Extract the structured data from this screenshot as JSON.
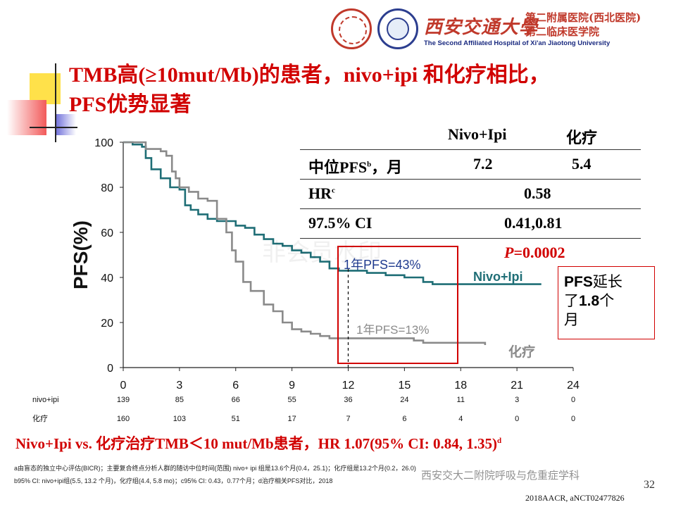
{
  "header": {
    "university": "西安交通大學",
    "dept_line1": "第二附属医院(西北医院)",
    "dept_line2": "第二临床医学院",
    "english_name": "The Second Affiliated Hospital of Xi'an Jiaotong University"
  },
  "title": {
    "line1": "TMB高(≥10mut/Mb)的患者，nivo+ipi 和化疗相比，",
    "line2": "PFS优势显著"
  },
  "stats_table": {
    "col1": "Nivo+Ipi",
    "col2": "化疗",
    "rows": [
      {
        "label": "中位PFS",
        "sup": "b",
        "suffix": "，月",
        "v1": "7.2",
        "v2": "5.4"
      },
      {
        "label": "HR",
        "sup": "c",
        "merged": "0.58"
      },
      {
        "label": "97.5% CI",
        "merged": "0.41,0.81"
      }
    ],
    "p_label": "P",
    "p_value": "=0.0002"
  },
  "chart_data": {
    "type": "line",
    "ylabel": "PFS(%)",
    "xlim": [
      0,
      24
    ],
    "ylim": [
      0,
      100
    ],
    "xticks": [
      0,
      3,
      6,
      9,
      12,
      15,
      18,
      21,
      24
    ],
    "yticks": [
      0,
      20,
      40,
      60,
      80,
      100
    ],
    "series": [
      {
        "name": "Nivo+Ipi",
        "color": "#1f6e76",
        "points": [
          [
            0,
            100
          ],
          [
            0.5,
            99
          ],
          [
            1,
            98
          ],
          [
            1.2,
            93
          ],
          [
            1.5,
            88
          ],
          [
            2,
            84
          ],
          [
            2.5,
            80
          ],
          [
            3,
            79
          ],
          [
            3.3,
            72
          ],
          [
            3.6,
            70
          ],
          [
            4,
            68
          ],
          [
            4.5,
            66
          ],
          [
            5,
            65
          ],
          [
            5.5,
            65
          ],
          [
            6,
            63
          ],
          [
            6.5,
            62
          ],
          [
            7,
            59
          ],
          [
            7.5,
            57
          ],
          [
            8,
            55
          ],
          [
            8.5,
            54
          ],
          [
            9,
            52
          ],
          [
            9.5,
            51
          ],
          [
            10,
            49
          ],
          [
            10.5,
            47
          ],
          [
            11,
            44
          ],
          [
            11.5,
            43
          ],
          [
            12,
            43
          ],
          [
            13,
            42
          ],
          [
            14,
            41
          ],
          [
            15,
            40
          ],
          [
            16,
            38
          ],
          [
            16.5,
            37
          ],
          [
            17,
            37
          ],
          [
            18,
            37
          ],
          [
            19,
            37
          ],
          [
            20,
            37
          ],
          [
            21,
            37
          ],
          [
            22.3,
            37
          ]
        ]
      },
      {
        "name": "化疗",
        "color": "#8a8a8a",
        "points": [
          [
            0,
            100
          ],
          [
            1,
            100
          ],
          [
            1.2,
            97
          ],
          [
            1.5,
            97
          ],
          [
            2,
            96
          ],
          [
            2.3,
            94
          ],
          [
            2.6,
            87
          ],
          [
            2.8,
            84
          ],
          [
            3,
            80
          ],
          [
            3.5,
            78
          ],
          [
            4,
            75
          ],
          [
            4.5,
            74
          ],
          [
            5,
            66
          ],
          [
            5.5,
            60
          ],
          [
            5.8,
            52
          ],
          [
            6,
            47
          ],
          [
            6.4,
            38
          ],
          [
            6.8,
            34
          ],
          [
            7.5,
            28
          ],
          [
            8,
            25
          ],
          [
            8.5,
            20
          ],
          [
            9,
            17
          ],
          [
            9.5,
            16
          ],
          [
            10,
            15
          ],
          [
            10.5,
            14
          ],
          [
            11,
            13
          ],
          [
            12,
            13
          ],
          [
            14,
            13
          ],
          [
            15,
            13
          ],
          [
            15.5,
            12
          ],
          [
            16,
            11
          ],
          [
            17,
            11
          ],
          [
            18,
            11
          ],
          [
            19.3,
            10
          ]
        ]
      }
    ],
    "annotations": [
      {
        "text": "1年PFS=43%",
        "color": "#1f3b8f"
      },
      {
        "text": "1年PFS=13%",
        "color": "#8a8a8a"
      }
    ],
    "risk_table": {
      "rows": [
        {
          "label": "nivo+ipi",
          "values": [
            139,
            85,
            66,
            55,
            36,
            24,
            11,
            3,
            0
          ]
        },
        {
          "label": "化疗",
          "values": [
            160,
            103,
            51,
            17,
            7,
            6,
            4,
            0,
            0
          ]
        }
      ]
    }
  },
  "watermark": "非会员水印",
  "callout": {
    "line1": "PFS",
    "line1b": "延长",
    "line2a": "了",
    "line2b": "1.8",
    "line2c": "个",
    "line3": "月"
  },
  "bottom_note": {
    "text": "Nivo+Ipi vs. 化疗治疗TMB＜10 mut/Mb患者，HR 1.07(95% CI: 0.84, 1.35)",
    "sup": "d"
  },
  "footnotes": {
    "a": "a由盲态的独立中心评估(BICR)；主要复合终点分析人群的随访中位时间(范围) nivo+ ipi 组是13.6个月(0.4，25.1)；化疗组是13.2个月(0.2，26.0)",
    "b": "b95% CI: nivo+ipi组(5.5, 13.2 个月)，化疗组(4.4, 5.8 mo)；c95% CI: 0.43，0.77个月；d治疗相关PFS对比，2018"
  },
  "wechat_mark": "西安交大二附院呼吸与危重症学科",
  "page_number": "32",
  "source": "2018AACR, aNCT02477826"
}
